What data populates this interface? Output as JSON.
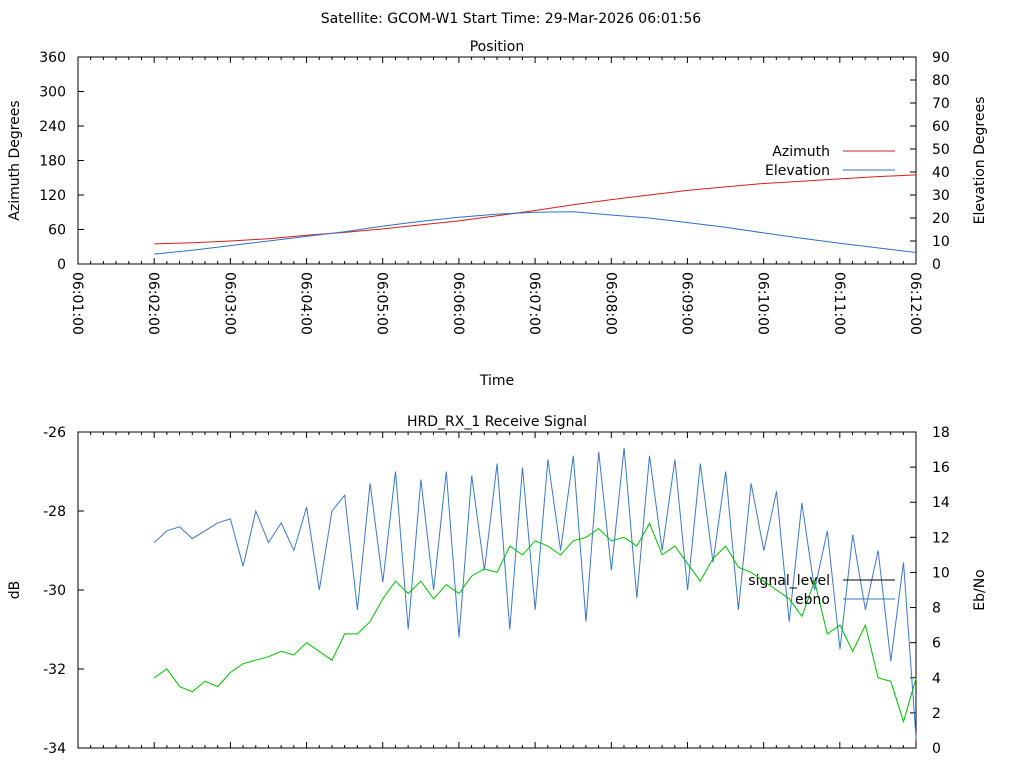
{
  "header": {
    "title": "Satellite: GCOM-W1    Start Time: 29-Mar-2026 06:01:56"
  },
  "colors": {
    "azimuth": "#d02020",
    "elevation": "#2f6fc0",
    "signal": "#3c78c8",
    "ebno": "#00c000",
    "legend_signal": "#000000"
  },
  "chart_data": [
    {
      "type": "line",
      "title": "Position",
      "xlabel": "Time",
      "ylabel": "Azimuth Degrees",
      "y2label": "Elevation Degrees",
      "x_ticks": [
        "06:01:00",
        "06:02:00",
        "06:03:00",
        "06:04:00",
        "06:05:00",
        "06:06:00",
        "06:07:00",
        "06:08:00",
        "06:09:00",
        "06:10:00",
        "06:11:00",
        "06:12:00"
      ],
      "xlim_minutes": [
        0,
        11
      ],
      "ylim": [
        0,
        360
      ],
      "y_ticks": [
        "0",
        "60",
        "120",
        "180",
        "240",
        "300",
        "360"
      ],
      "y2lim": [
        0,
        90
      ],
      "y2_ticks": [
        "0",
        "10",
        "20",
        "30",
        "40",
        "50",
        "60",
        "70",
        "80",
        "90"
      ],
      "legend_position": "right",
      "x_start_minute": 1,
      "x_step_minutes": 0.5,
      "series": [
        {
          "name": "Azimuth",
          "axis": "y",
          "values": [
            35,
            37,
            40,
            44,
            50,
            55,
            61,
            68,
            75,
            84,
            93,
            103,
            112,
            120,
            128,
            134,
            140,
            144,
            148,
            152,
            155
          ]
        },
        {
          "name": "Elevation",
          "axis": "y2",
          "values": [
            4.3,
            6,
            8,
            10,
            12,
            14,
            16.5,
            18.5,
            20.3,
            21.7,
            22.5,
            22.7,
            21.3,
            20,
            18,
            16,
            13.5,
            11.2,
            9,
            7,
            5
          ]
        }
      ]
    },
    {
      "type": "line",
      "title": "HRD_RX_1 Receive Signal",
      "ylabel": "dB",
      "y2label": "Eb/No",
      "xlim_minutes": [
        0,
        11
      ],
      "ylim": [
        -34,
        -26
      ],
      "y_ticks": [
        "-34",
        "-32",
        "-30",
        "-28",
        "-26"
      ],
      "y2lim": [
        0,
        18
      ],
      "y2_ticks": [
        "0",
        "2",
        "4",
        "6",
        "8",
        "10",
        "12",
        "14",
        "16",
        "18"
      ],
      "legend_position": "right",
      "x_start_minute": 1,
      "x_step_minutes": 0.1667,
      "series": [
        {
          "name": "signal_level",
          "axis": "y",
          "values": [
            -28.8,
            -28.5,
            -28.4,
            -28.7,
            -28.5,
            -28.3,
            -28.2,
            -29.4,
            -28.0,
            -28.8,
            -28.3,
            -29.0,
            -27.9,
            -30.0,
            -28.0,
            -27.6,
            -30.5,
            -27.3,
            -29.8,
            -27.0,
            -31.0,
            -27.2,
            -30.0,
            -27.0,
            -31.2,
            -27.1,
            -29.5,
            -26.8,
            -31.0,
            -26.9,
            -30.5,
            -26.7,
            -29.0,
            -26.6,
            -30.8,
            -26.5,
            -29.5,
            -26.4,
            -30.2,
            -26.6,
            -29.0,
            -26.7,
            -30.0,
            -26.8,
            -29.3,
            -27.0,
            -30.5,
            -27.3,
            -29.0,
            -27.5,
            -30.8,
            -27.8,
            -30.0,
            -28.5,
            -31.5,
            -28.6,
            -30.5,
            -29.0,
            -31.8,
            -29.3,
            -33.8
          ]
        },
        {
          "name": "ebno",
          "axis": "y2",
          "values": [
            4.0,
            4.5,
            3.5,
            3.2,
            3.8,
            3.5,
            4.3,
            4.8,
            5.0,
            5.2,
            5.5,
            5.3,
            6.0,
            5.5,
            5.0,
            6.5,
            6.5,
            7.2,
            8.5,
            9.5,
            8.8,
            9.5,
            8.5,
            9.3,
            8.8,
            9.8,
            10.2,
            10.0,
            11.5,
            11.0,
            11.8,
            11.5,
            11.0,
            11.8,
            12.0,
            12.5,
            11.8,
            12.0,
            11.5,
            12.8,
            11.0,
            11.5,
            10.5,
            9.5,
            10.8,
            11.5,
            10.3,
            10.0,
            9.5,
            9.0,
            8.5,
            7.5,
            9.5,
            6.5,
            7.0,
            5.5,
            7.0,
            4.0,
            3.8,
            1.5,
            4.0
          ]
        }
      ]
    }
  ]
}
